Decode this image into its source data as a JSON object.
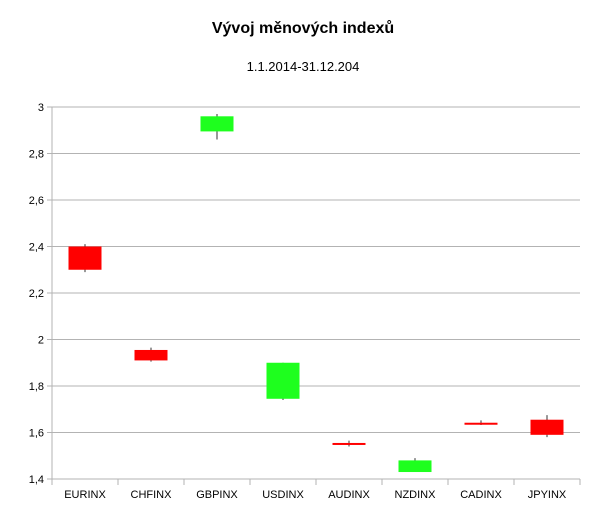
{
  "chart_data": {
    "type": "candlestick",
    "title": "Vývoj měnových indexů",
    "subtitle": "1.1.2014-31.12.204",
    "ylim": [
      1.4,
      3.0
    ],
    "yticks": [
      "1,4",
      "1,6",
      "1,8",
      "2",
      "2,2",
      "2,4",
      "2,6",
      "2,8",
      "3"
    ],
    "grid": true,
    "colors": {
      "up": "#1eff1e",
      "down": "#ff0000"
    },
    "categories": [
      "EURINX",
      "CHFINX",
      "GBPINX",
      "USDINX",
      "AUDINX",
      "NZDINX",
      "CADINX",
      "JPYINX"
    ],
    "candles": [
      {
        "open": 2.4,
        "close": 2.3,
        "high": 2.41,
        "low": 2.29
      },
      {
        "open": 1.955,
        "close": 1.91,
        "high": 1.965,
        "low": 1.905
      },
      {
        "open": 2.895,
        "close": 2.96,
        "high": 2.97,
        "low": 2.86
      },
      {
        "open": 1.745,
        "close": 1.9,
        "high": 1.9,
        "low": 1.74
      },
      {
        "open": 1.555,
        "close": 1.55,
        "high": 1.565,
        "low": 1.54
      },
      {
        "open": 1.43,
        "close": 1.48,
        "high": 1.49,
        "low": 1.43
      },
      {
        "open": 1.642,
        "close": 1.637,
        "high": 1.652,
        "low": 1.632
      },
      {
        "open": 1.655,
        "close": 1.59,
        "high": 1.675,
        "low": 1.58
      }
    ]
  }
}
